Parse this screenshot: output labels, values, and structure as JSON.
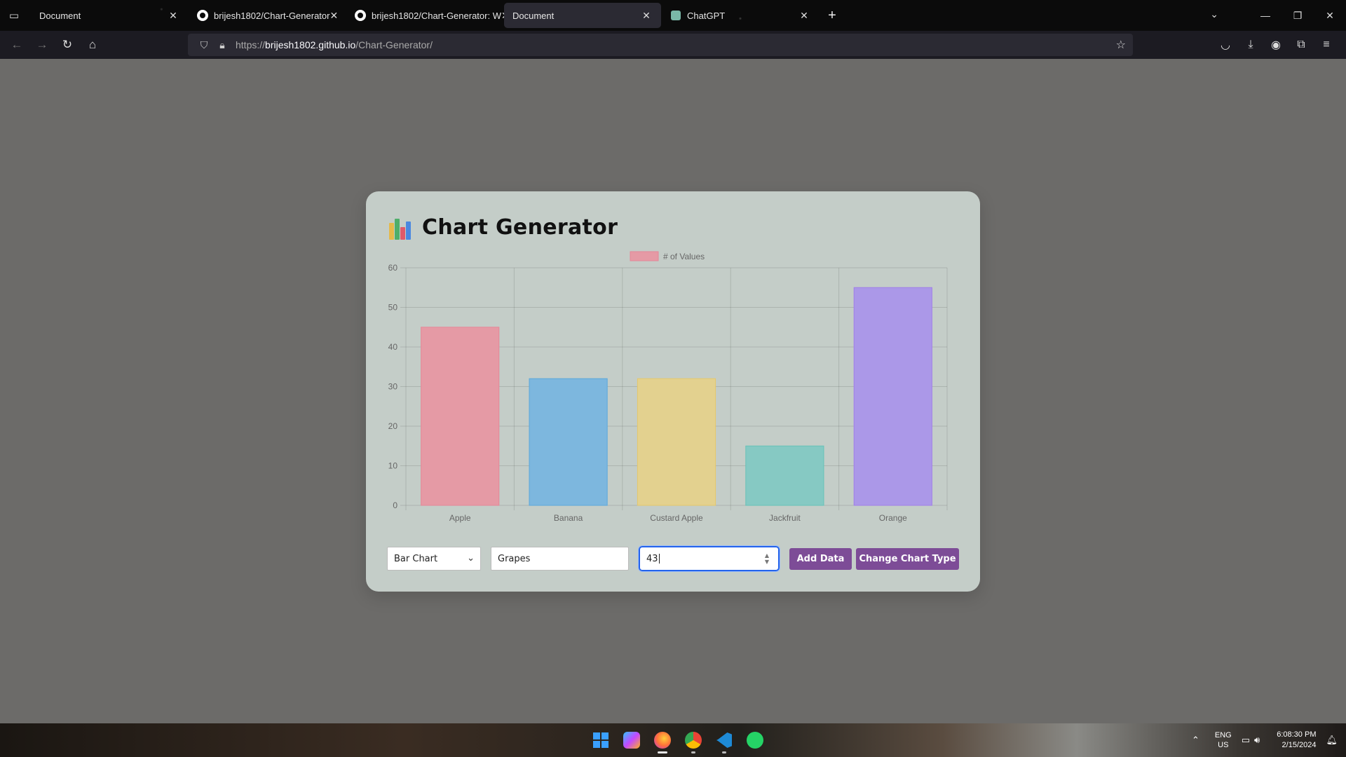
{
  "browser": {
    "tabs": [
      {
        "title": "Document",
        "icon": "none",
        "active": false
      },
      {
        "title": "brijesh1802/Chart-Generator",
        "icon": "github-icon",
        "active": false
      },
      {
        "title": "brijesh1802/Chart-Generator: W",
        "icon": "github-icon",
        "active": false
      },
      {
        "title": "Document",
        "icon": "none",
        "active": true
      },
      {
        "title": "ChatGPT",
        "icon": "chatgpt-icon",
        "active": false
      }
    ],
    "url_prefix": "https://",
    "url_host": "brijesh1802.github.io",
    "url_path": "/Chart-Generator/"
  },
  "page": {
    "title": "Chart Generator",
    "controls": {
      "chart_type": "Bar Chart",
      "label_value": "Grapes",
      "number_value": "43",
      "add_label": "Add Data",
      "change_label": "Change Chart Type"
    }
  },
  "chart_data": {
    "type": "bar",
    "categories": [
      "Apple",
      "Banana",
      "Custard Apple",
      "Jackfruit",
      "Orange"
    ],
    "series": [
      {
        "name": "# of Values",
        "values": [
          45,
          32,
          32,
          15,
          55
        ]
      }
    ],
    "colors": [
      "#e59aa5",
      "#7db7de",
      "#e3d18f",
      "#86c9c3",
      "#ab98e8"
    ],
    "borders": [
      "#e58797",
      "#5aa8dc",
      "#e6c86a",
      "#66c2b8",
      "#a07ee8"
    ],
    "legend_color": "#e59aa5",
    "ylim": [
      0,
      60
    ],
    "yticks": [
      0,
      10,
      20,
      30,
      40,
      50,
      60
    ],
    "grid": true,
    "legend_position": "top"
  },
  "taskbar": {
    "lang_line1": "ENG",
    "lang_line2": "US",
    "time": "6:08:30 PM",
    "date": "2/15/2024"
  }
}
